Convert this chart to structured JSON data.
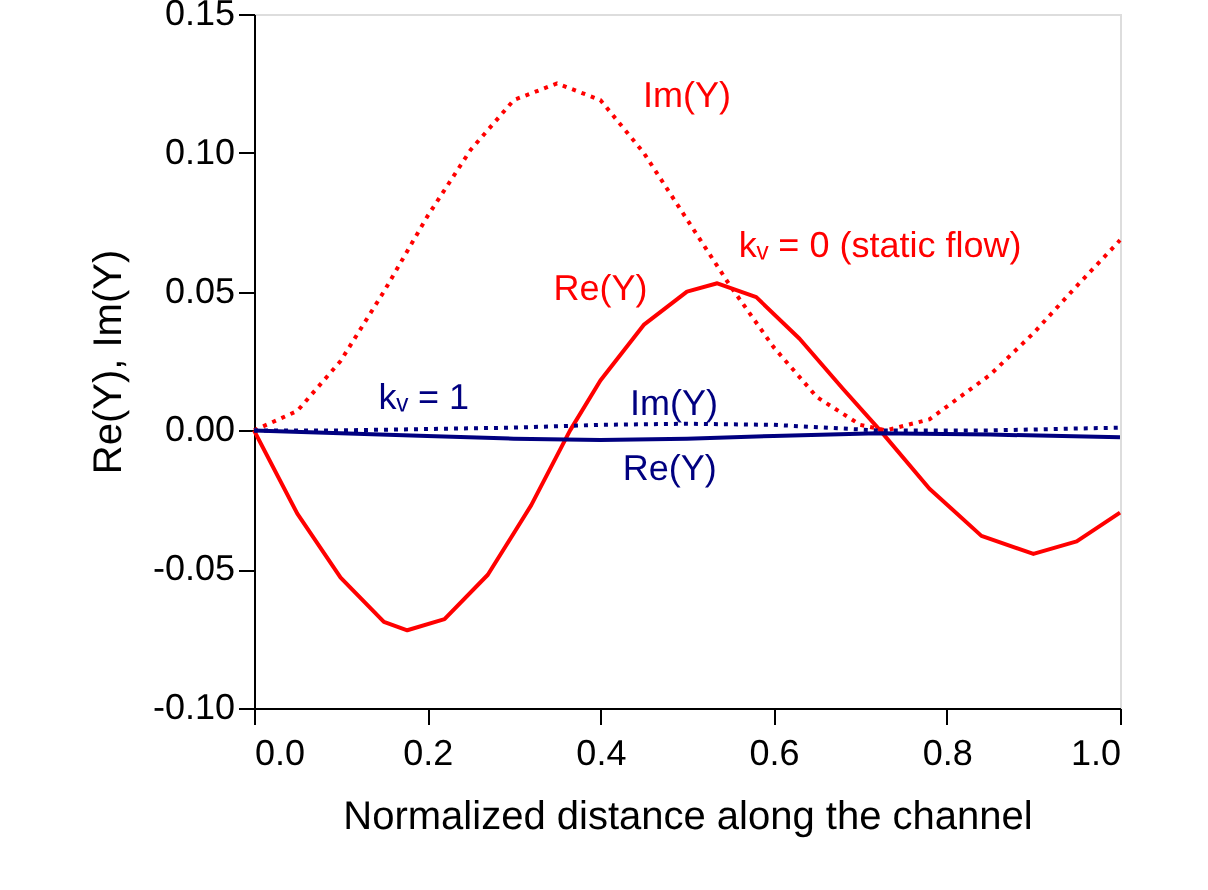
{
  "chart_data": {
    "type": "line",
    "xlabel": "Normalized distance along the channel",
    "ylabel": "Re(Y), Im(Y)",
    "xlim": [
      0,
      1
    ],
    "ylim": [
      -0.1,
      0.15
    ],
    "xticks": [
      {
        "value": 0,
        "label": "0.0"
      },
      {
        "value": 0.2,
        "label": "0.2"
      },
      {
        "value": 0.4,
        "label": "0.4"
      },
      {
        "value": 0.6,
        "label": "0.6"
      },
      {
        "value": 0.8,
        "label": "0.8"
      },
      {
        "value": 1,
        "label": "1.0"
      }
    ],
    "yticks": [
      {
        "value": -0.1,
        "label": "-0.10"
      },
      {
        "value": -0.05,
        "label": "-0.05"
      },
      {
        "value": 0,
        "label": "0.00"
      },
      {
        "value": 0.05,
        "label": "0.05"
      },
      {
        "value": 0.1,
        "label": "0.10"
      },
      {
        "value": 0.15,
        "label": "0.15"
      }
    ],
    "grid": false,
    "marker": "none",
    "series": [
      {
        "color": "#ff0000",
        "line_style": "solid",
        "x": [
          0,
          0.05,
          0.1,
          0.15,
          0.177,
          0.22,
          0.27,
          0.32,
          0.365,
          0.4,
          0.45,
          0.5,
          0.535,
          0.58,
          0.63,
          0.68,
          0.723,
          0.78,
          0.84,
          0.9,
          0.95,
          1.0
        ],
        "values": [
          0,
          -0.03,
          -0.053,
          -0.069,
          -0.072,
          -0.068,
          -0.052,
          -0.027,
          0,
          0.018,
          0.038,
          0.05,
          0.053,
          0.048,
          0.033,
          0.015,
          0,
          -0.021,
          -0.038,
          -0.0445,
          -0.04,
          -0.0296
        ]
      },
      {
        "color": "#ff0000",
        "line_style": "dotted",
        "x": [
          0,
          0.05,
          0.1,
          0.15,
          0.2,
          0.25,
          0.3,
          0.35,
          0.4,
          0.45,
          0.5,
          0.55,
          0.6,
          0.65,
          0.7,
          0.73,
          0.78,
          0.85,
          0.9,
          0.95,
          1.0
        ],
        "values": [
          0,
          0.007,
          0.025,
          0.05,
          0.077,
          0.101,
          0.119,
          0.125,
          0.119,
          0.1,
          0.076,
          0.052,
          0.03,
          0.012,
          0.002,
          0,
          0.004,
          0.02,
          0.035,
          0.052,
          0.0685
        ]
      },
      {
        "color": "#000080",
        "line_style": "solid",
        "x": [
          0,
          0.1,
          0.2,
          0.3,
          0.4,
          0.5,
          0.6,
          0.72,
          0.85,
          1.0
        ],
        "values": [
          0,
          -0.001,
          -0.002,
          -0.003,
          -0.0035,
          -0.003,
          -0.002,
          -0.001,
          -0.0015,
          -0.0025
        ]
      },
      {
        "color": "#000080",
        "line_style": "dotted",
        "x": [
          0,
          0.1,
          0.2,
          0.3,
          0.4,
          0.5,
          0.6,
          0.72,
          0.85,
          1.0
        ],
        "values": [
          0,
          0,
          0.0005,
          0.001,
          0.002,
          0.0024,
          0.002,
          0,
          0,
          0.001
        ]
      }
    ],
    "annotations": [
      "Im(Y)",
      "kᵥ = 0 (static flow)",
      "Re(Y)",
      "kᵥ = 1",
      "Im(Y)",
      "Re(Y)"
    ]
  }
}
